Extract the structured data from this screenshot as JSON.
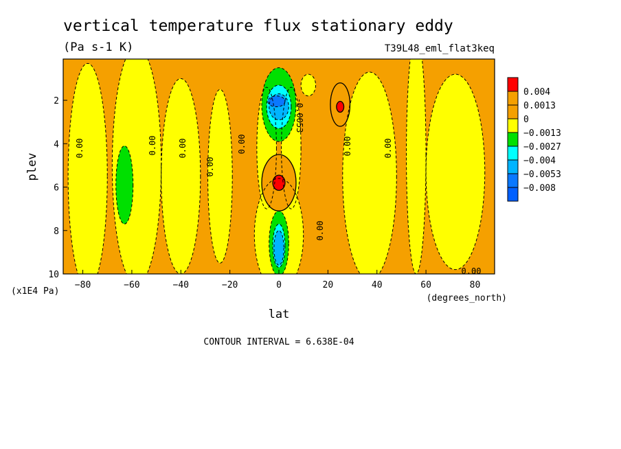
{
  "chart_data": {
    "type": "contour",
    "title": "vertical temperature flux stationary eddy",
    "units": "(Pa s-1 K)",
    "experiment": "T39L48_eml_flat3keq",
    "xlabel": "lat",
    "x_units": "(degrees_north)",
    "ylabel": "plev",
    "y_units": "(x1E4 Pa)",
    "xlim": [
      -88,
      88
    ],
    "ylim": [
      10,
      0.1
    ],
    "x_ticks": [
      -80,
      -60,
      -40,
      -20,
      0,
      20,
      40,
      60,
      80
    ],
    "y_ticks": [
      2,
      4,
      6,
      8,
      10
    ],
    "contour_interval_text": "CONTOUR INTERVAL = 6.638E-04",
    "contour_line_labels": [
      "0.00",
      "0.00",
      "0.00",
      "0.00",
      "0.00",
      "0.00",
      "0.00",
      "0.00",
      "0.00",
      "0.00",
      "0.00",
      "-0.0053"
    ],
    "colors": {
      "band_le_-0.008": "#0060ff",
      "band_-0.008_-0.0053": "#0a78ff",
      "band_-0.0053_-0.004": "#00b4ff",
      "band_-0.004_-0.0027": "#00ffff",
      "band_-0.0027_-0.0013": "#00e000",
      "band_-0.0013_0": "#ffff00",
      "band_0_0.0013": "#f5a000",
      "band_0.0013_0.004": "#f5a000",
      "band_ge_0.004": "#ff0000"
    },
    "colorbar": {
      "levels": [
        "0.004",
        "0.0013",
        "0",
        "−0.0013",
        "−0.0027",
        "−0.004",
        "−0.0053",
        "−0.008"
      ],
      "box_colors": [
        "#ff0000",
        "#f5a000",
        "#f5a000",
        "#ffff00",
        "#00e000",
        "#00ffff",
        "#00b4ff",
        "#0a78ff",
        "#0060ff"
      ]
    },
    "regions": [
      {
        "value": 0.0006,
        "shape": "rect",
        "lat": [
          -88,
          88
        ],
        "plev": [
          0.1,
          10
        ]
      },
      {
        "value": -0.0006,
        "shape": "ellipse",
        "lat": -78,
        "plev": 5.5,
        "rlat": 8,
        "rplev": 5.2
      },
      {
        "value": -0.0006,
        "shape": "ellipse",
        "lat": -58,
        "plev": 5.0,
        "rlat": 10,
        "rplev": 5.5
      },
      {
        "value": -0.0006,
        "shape": "ellipse",
        "lat": -40,
        "plev": 5.5,
        "rlat": 8,
        "rplev": 4.5
      },
      {
        "value": -0.0006,
        "shape": "ellipse",
        "lat": -24,
        "plev": 5.5,
        "rlat": 5,
        "rplev": 4.0
      },
      {
        "value": -0.0006,
        "shape": "ellipse",
        "lat": -5,
        "plev": 4.2,
        "rlat": 4,
        "rplev": 2.8
      },
      {
        "value": -0.0006,
        "shape": "ellipse",
        "lat": 5,
        "plev": 4.2,
        "rlat": 4,
        "rplev": 2.8
      },
      {
        "value": -0.0006,
        "shape": "ellipse",
        "lat": 0,
        "plev": 8.2,
        "rlat": 10,
        "rplev": 2.6
      },
      {
        "value": -0.0006,
        "shape": "ellipse",
        "lat": 37,
        "plev": 5.5,
        "rlat": 11,
        "rplev": 4.8
      },
      {
        "value": -0.0006,
        "shape": "ellipse",
        "lat": 56,
        "plev": 4.5,
        "rlat": 4,
        "rplev": 5.5
      },
      {
        "value": -0.0006,
        "shape": "ellipse",
        "lat": 72,
        "plev": 5.3,
        "rlat": 12,
        "rplev": 4.5
      },
      {
        "value": -0.0006,
        "shape": "ellipse",
        "lat": 12,
        "plev": 1.3,
        "rlat": 3,
        "rplev": 0.5
      },
      {
        "value": 0.0006,
        "shape": "ellipse",
        "lat": 0,
        "plev": 5.8,
        "rlat": 7,
        "rplev": 1.3
      },
      {
        "value": 0.0006,
        "shape": "ellipse",
        "lat": 25,
        "plev": 2.2,
        "rlat": 4,
        "rplev": 1.0
      },
      {
        "value": -0.002,
        "shape": "ellipse",
        "lat": -63,
        "plev": 5.9,
        "rlat": 3.5,
        "rplev": 1.8
      },
      {
        "value": -0.002,
        "shape": "ellipse",
        "lat": 0,
        "plev": 2.2,
        "rlat": 7,
        "rplev": 1.7
      },
      {
        "value": -0.002,
        "shape": "ellipse",
        "lat": 0,
        "plev": 8.6,
        "rlat": 4,
        "rplev": 1.5
      },
      {
        "value": -0.0033,
        "shape": "ellipse",
        "lat": 0,
        "plev": 2.3,
        "rlat": 5,
        "rplev": 1.0
      },
      {
        "value": -0.0033,
        "shape": "ellipse",
        "lat": 0,
        "plev": 8.7,
        "rlat": 2.5,
        "rplev": 1.0
      },
      {
        "value": -0.0047,
        "shape": "ellipse",
        "lat": 0,
        "plev": 2.3,
        "rlat": 4,
        "rplev": 0.6
      },
      {
        "value": -0.0047,
        "shape": "ellipse",
        "lat": 0,
        "plev": 8.8,
        "rlat": 2,
        "rplev": 0.8
      },
      {
        "value": -0.0065,
        "shape": "ellipse",
        "lat": -1,
        "plev": 2.05,
        "rlat": 3.5,
        "rplev": 0.25
      },
      {
        "value": 0.0045,
        "shape": "ellipse",
        "lat": 0,
        "plev": 5.8,
        "rlat": 2.5,
        "rplev": 0.35
      },
      {
        "value": 0.0045,
        "shape": "ellipse",
        "lat": 25,
        "plev": 2.3,
        "rlat": 1.5,
        "rplev": 0.25
      }
    ]
  }
}
